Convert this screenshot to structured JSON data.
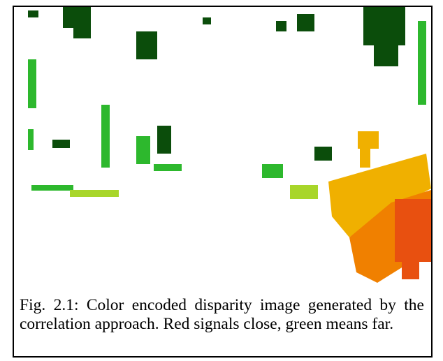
{
  "figure": {
    "caption": "Fig. 2.1: Color encoded disparity image generated by the correlation approach. Red signals close, green means far."
  }
}
